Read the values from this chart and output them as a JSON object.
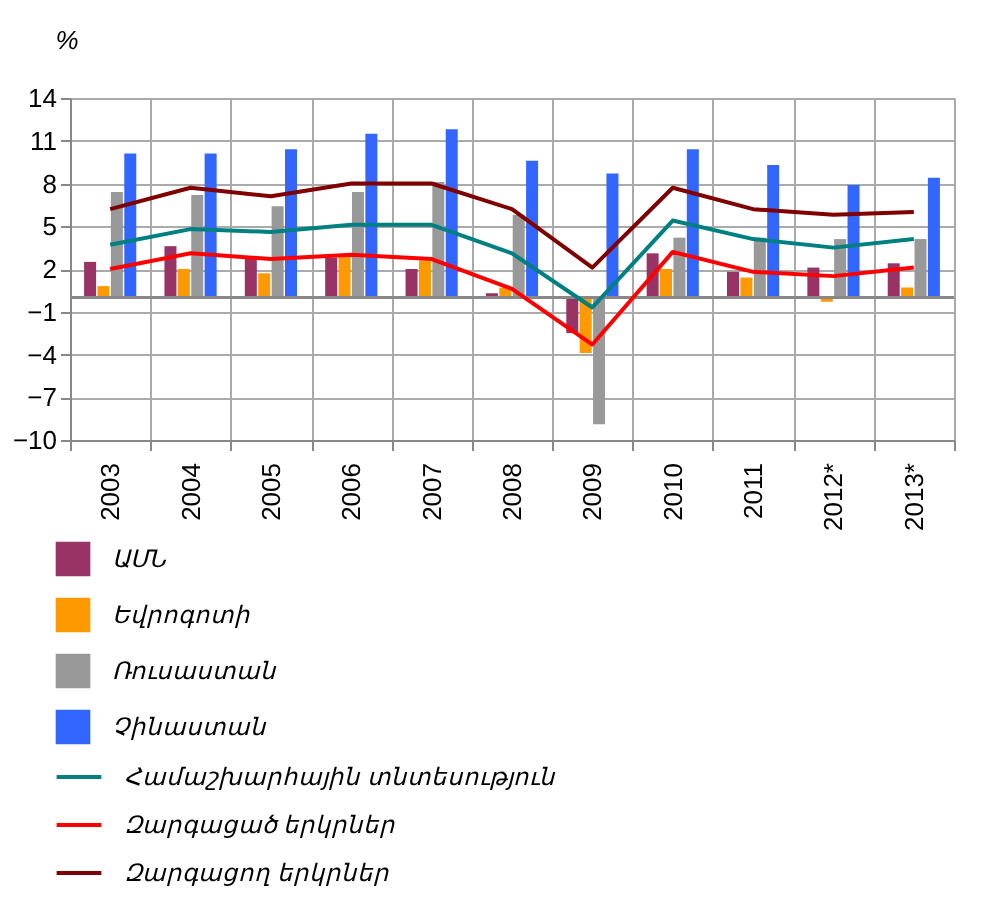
{
  "chart_data": {
    "type": "bar",
    "ylabel": "%",
    "categories": [
      "2003",
      "2004",
      "2005",
      "2006",
      "2007",
      "2008",
      "2009",
      "2010",
      "2011",
      "2012*",
      "2013*"
    ],
    "series": [
      {
        "name": "ԱՄՆ",
        "color": "#993366",
        "values": [
          2.5,
          3.6,
          2.9,
          2.8,
          2.0,
          0.3,
          -2.5,
          3.1,
          1.8,
          2.1,
          2.4
        ]
      },
      {
        "name": "Եվրոգոտի",
        "color": "#ff9900",
        "values": [
          0.8,
          2.0,
          1.7,
          2.9,
          2.6,
          0.7,
          -3.9,
          2.0,
          1.4,
          -0.3,
          0.7
        ]
      },
      {
        "name": "Ռուսաստան",
        "color": "#999999",
        "values": [
          7.4,
          7.2,
          6.4,
          7.4,
          8.1,
          5.8,
          -8.9,
          4.2,
          4.2,
          4.1,
          4.1
        ]
      },
      {
        "name": "Չինաստան",
        "color": "#3366ff",
        "values": [
          10.1,
          10.1,
          10.4,
          11.5,
          11.8,
          9.6,
          8.7,
          10.4,
          9.3,
          7.9,
          8.4
        ]
      },
      {
        "name": "Համաշխարհային տնտեսություն",
        "type": "line",
        "color": "#008080",
        "values": [
          3.7,
          4.8,
          4.6,
          5.1,
          5.1,
          3.1,
          -0.7,
          5.4,
          4.1,
          3.5,
          4.1
        ]
      },
      {
        "name": "Զարգացած երկրներ",
        "type": "line",
        "color": "#ff0000",
        "values": [
          2.0,
          3.1,
          2.7,
          3.0,
          2.7,
          0.6,
          -3.3,
          3.2,
          1.8,
          1.5,
          2.1
        ]
      },
      {
        "name": "Զարգացող երկրներ",
        "type": "line",
        "color": "#800000",
        "values": [
          6.2,
          7.7,
          7.1,
          8.0,
          8.0,
          6.2,
          2.1,
          7.7,
          6.2,
          5.8,
          6.0
        ]
      }
    ],
    "ylim": [
      -10,
      14
    ],
    "yticks": [
      14,
      11,
      8,
      5,
      2,
      -1,
      -4,
      -7,
      -10
    ],
    "grid": true,
    "legend": "bottom",
    "marker": "none",
    "line_style": "solid"
  }
}
